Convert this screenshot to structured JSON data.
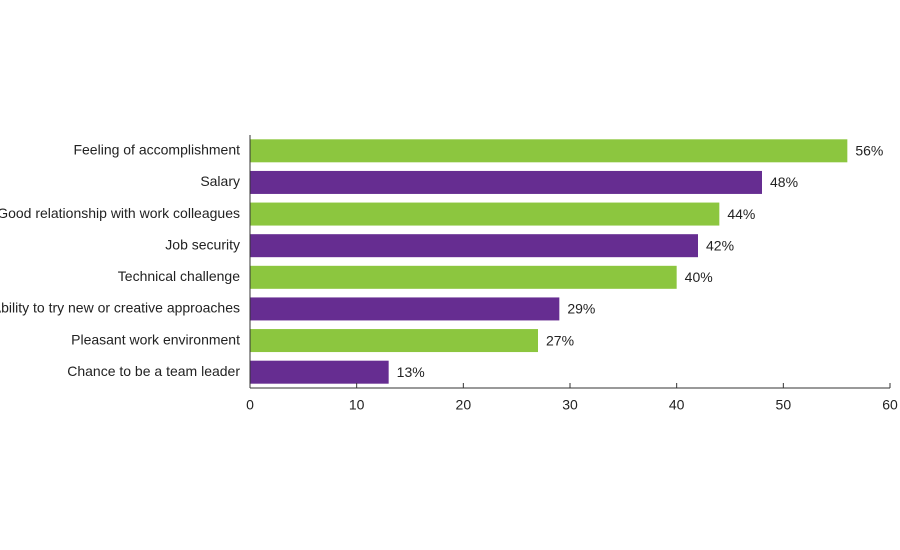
{
  "chart_data": {
    "type": "bar",
    "orientation": "horizontal",
    "categories": [
      "Feeling of accomplishment",
      "Salary",
      "Good relationship with work colleagues",
      "Job security",
      "Technical challenge",
      "Ability to try new or creative approaches",
      "Pleasant work environment",
      "Chance to be a team leader"
    ],
    "values": [
      56,
      48,
      44,
      42,
      40,
      29,
      27,
      13
    ],
    "value_labels": [
      "56%",
      "48%",
      "44%",
      "42%",
      "40%",
      "29%",
      "27%",
      "13%"
    ],
    "colors": [
      "#8cc63f",
      "#662d91",
      "#8cc63f",
      "#662d91",
      "#8cc63f",
      "#662d91",
      "#8cc63f",
      "#662d91"
    ],
    "xlim": [
      0,
      60
    ],
    "xticks": [
      0,
      10,
      20,
      30,
      40,
      50,
      60
    ]
  }
}
